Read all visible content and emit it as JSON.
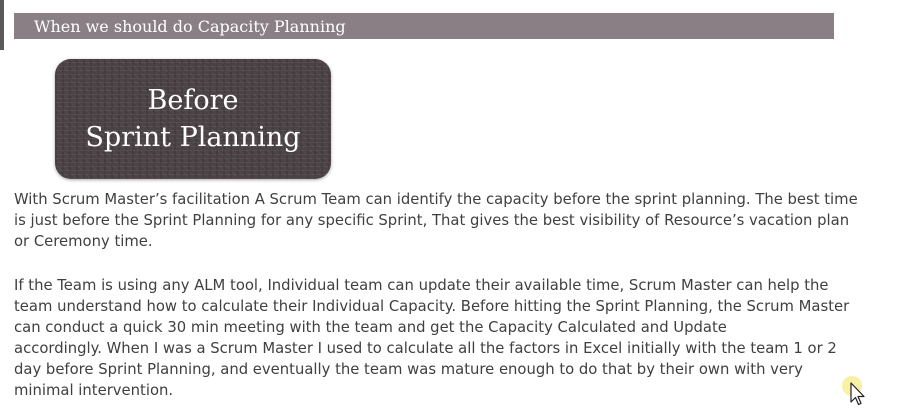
{
  "header": {
    "title": "When we should do Capacity Planning"
  },
  "badge": {
    "line1": "Before",
    "line2": "Sprint Planning"
  },
  "paragraphs": {
    "p1": [
      "With Scrum Master’s facilitation A Scrum Team can identify the capacity before the sprint planning. The best time",
      "is just before the Sprint Planning for any specific Sprint, That gives the best visibility of Resource’s vacation plan",
      "or Ceremony time."
    ],
    "p2": [
      "If the Team is using any ALM tool, Individual team can update their available time, Scrum Master can help the",
      "team understand how to calculate their Individual Capacity.  Before hitting the Sprint Planning, the Scrum Master",
      "can conduct a quick 30 min meeting with the team and get the Capacity Calculated and Update",
      "accordingly.  When I was a Scrum Master I used to calculate all the factors in Excel initially with the team 1 or 2",
      "day before Sprint Planning, and eventually the team was mature enough to do that by their own with very",
      "minimal intervention."
    ]
  },
  "colors": {
    "header_bg": "#8a7f85",
    "badge_bg": "#4b4245",
    "body_text": "#404040",
    "cursor_highlight": "#f7ee9a"
  },
  "icons": {
    "cursor": "mouse-pointer-icon"
  }
}
